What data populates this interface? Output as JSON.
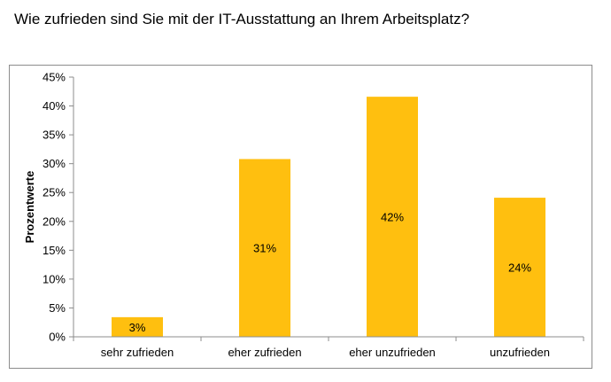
{
  "page": {
    "title": "Wie zufrieden sind Sie mit der IT-Ausstattung an Ihrem Arbeitsplatz?"
  },
  "chart_data": {
    "type": "bar",
    "title": "Wie zufrieden sind Sie mit der IT-Ausstattung an Ihrem Arbeitsplatz?",
    "xlabel": "",
    "ylabel": "Prozentwerte",
    "categories": [
      "sehr zufrieden",
      "eher zufrieden",
      "eher unzufrieden",
      "unzufrieden"
    ],
    "values": [
      3.4,
      30.8,
      41.6,
      24.1
    ],
    "data_labels": [
      "3%",
      "31%",
      "42%",
      "24%"
    ],
    "ylim": [
      0,
      45
    ],
    "yticks": [
      0,
      5,
      10,
      15,
      20,
      25,
      30,
      35,
      40,
      45
    ],
    "ytick_labels": [
      "0%",
      "5%",
      "10%",
      "15%",
      "20%",
      "25%",
      "30%",
      "35%",
      "40%",
      "45%"
    ],
    "grid": false,
    "legend": "none",
    "bar_color": "#ffbf0f",
    "axis_color": "#8c8c8c"
  }
}
